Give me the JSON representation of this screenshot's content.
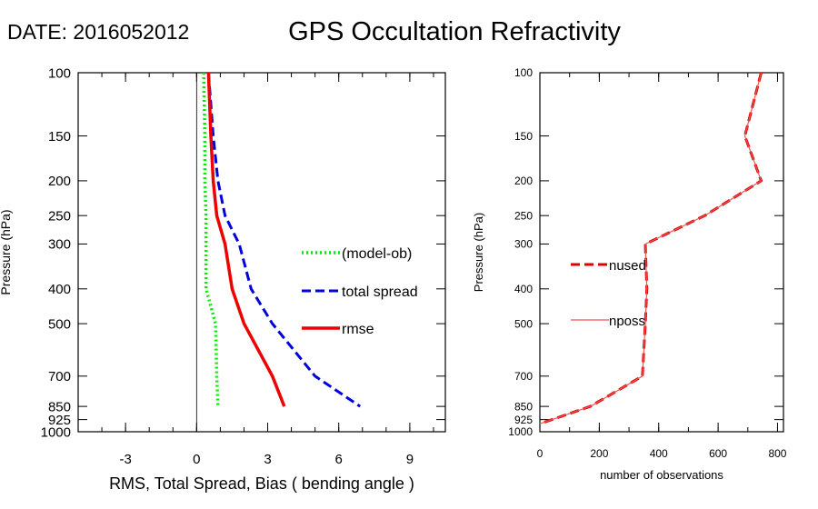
{
  "header": {
    "date_label": "DATE: 2016052012",
    "title": "GPS Occultation Refractivity"
  },
  "chart_data": [
    {
      "type": "line",
      "ylabel": "Pressure (hPa)",
      "xlabel": "RMS, Total Spread, Bias ( bending angle )",
      "y_scale": "log",
      "y_reversed": true,
      "ylim": [
        1000,
        100
      ],
      "xlim": [
        -5,
        10.5
      ],
      "yticks": [
        100,
        150,
        200,
        250,
        300,
        400,
        500,
        700,
        850,
        925,
        1000
      ],
      "xticks": [
        -3,
        0,
        3,
        6,
        9
      ],
      "zero_line": true,
      "series": [
        {
          "name": "(model-ob)",
          "color": "#00ee00",
          "style": "dotted",
          "points": [
            [
              0.3,
              100
            ],
            [
              0.35,
              150
            ],
            [
              0.35,
              200
            ],
            [
              0.4,
              250
            ],
            [
              0.4,
              300
            ],
            [
              0.4,
              400
            ],
            [
              0.8,
              500
            ],
            [
              0.85,
              700
            ],
            [
              0.9,
              850
            ]
          ]
        },
        {
          "name": "total spread",
          "color": "#0000dd",
          "style": "dashed",
          "points": [
            [
              0.5,
              100
            ],
            [
              0.7,
              150
            ],
            [
              0.9,
              200
            ],
            [
              1.2,
              250
            ],
            [
              1.8,
              300
            ],
            [
              2.3,
              400
            ],
            [
              3.2,
              500
            ],
            [
              5.0,
              700
            ],
            [
              6.9,
              850
            ]
          ]
        },
        {
          "name": "rmse",
          "color": "#ee0000",
          "style": "solid",
          "points": [
            [
              0.5,
              100
            ],
            [
              0.6,
              150
            ],
            [
              0.7,
              200
            ],
            [
              0.85,
              250
            ],
            [
              1.2,
              300
            ],
            [
              1.5,
              400
            ],
            [
              2.0,
              500
            ],
            [
              3.2,
              700
            ],
            [
              3.7,
              850
            ]
          ]
        }
      ],
      "legend": "right-middle"
    },
    {
      "type": "line",
      "ylabel": "Pressure (hPa)",
      "xlabel": "number of observations",
      "y_scale": "log",
      "y_reversed": true,
      "ylim": [
        1000,
        100
      ],
      "xlim": [
        0,
        820
      ],
      "yticks": [
        100,
        150,
        200,
        250,
        300,
        400,
        500,
        700,
        850,
        925,
        1000
      ],
      "xticks": [
        0,
        200,
        400,
        600,
        800
      ],
      "series": [
        {
          "name": "nused",
          "color": "#dd0000",
          "style": "dashed",
          "points": [
            [
              745,
              100
            ],
            [
              690,
              150
            ],
            [
              745,
              200
            ],
            [
              555,
              250
            ],
            [
              355,
              300
            ],
            [
              360,
              400
            ],
            [
              355,
              500
            ],
            [
              345,
              700
            ],
            [
              170,
              850
            ],
            [
              0,
              950
            ]
          ]
        },
        {
          "name": "nposs",
          "color": "#ee5555",
          "style": "thin",
          "points": [
            [
              745,
              100
            ],
            [
              690,
              150
            ],
            [
              745,
              200
            ],
            [
              555,
              250
            ],
            [
              355,
              300
            ],
            [
              360,
              400
            ],
            [
              355,
              500
            ],
            [
              345,
              700
            ],
            [
              170,
              850
            ],
            [
              0,
              950
            ]
          ]
        }
      ],
      "legend": "left-middle"
    }
  ]
}
